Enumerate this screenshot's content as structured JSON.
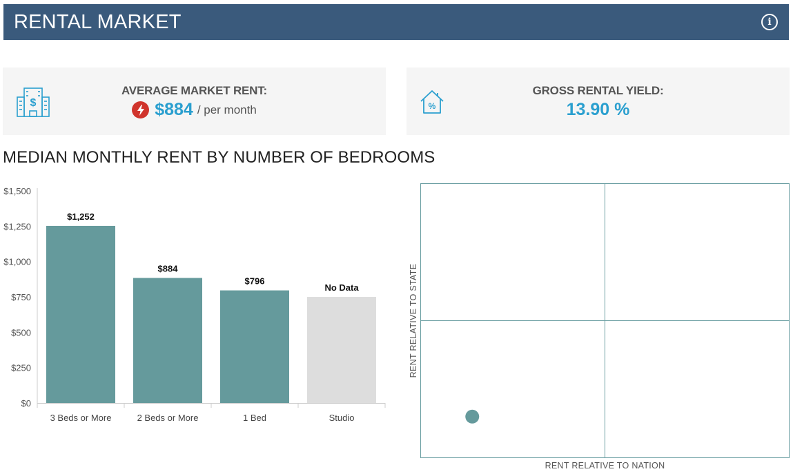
{
  "header": {
    "title": "RENTAL MARKET",
    "info_icon": "info-circle-icon"
  },
  "rent_card": {
    "icon": "building-dollar-icon",
    "label": "AVERAGE MARKET RENT:",
    "alert_icon": "lightning-bolt-icon",
    "value": "$884",
    "unit": "/ per month"
  },
  "yield_card": {
    "icon": "house-percent-icon",
    "label": "GROSS RENTAL YIELD:",
    "value": "13.90 %"
  },
  "section": {
    "title": "MEDIAN MONTHLY RENT BY NUMBER OF BEDROOMS"
  },
  "colors": {
    "header_bg": "#3a5a7c",
    "bar": "#659a9c",
    "bar_no_data": "#dddddd",
    "accent": "#2a9fcf",
    "alert": "#d0342c"
  },
  "chart_data": [
    {
      "type": "bar",
      "categories": [
        "3 Beds or More",
        "2 Beds or More",
        "1 Bed",
        "Studio"
      ],
      "values": [
        1252,
        884,
        796,
        null
      ],
      "data_labels": [
        "$1,252",
        "$884",
        "$796",
        "No Data"
      ],
      "placeholder_value_no_data": 750,
      "yticks": [
        0,
        250,
        500,
        750,
        1000,
        1250,
        1500
      ],
      "ytick_labels": [
        "$0",
        "$250",
        "$500",
        "$750",
        "$1,000",
        "$1,250",
        "$1,500"
      ],
      "ylim": [
        0,
        1500
      ],
      "title": "",
      "xlabel": "",
      "ylabel": "",
      "grid": false
    },
    {
      "type": "scatter",
      "xlabel": "RENT RELATIVE TO NATION",
      "ylabel": "RENT RELATIVE TO STATE",
      "quadrant_dividers": true,
      "xlim": [
        0,
        1
      ],
      "ylim": [
        0,
        1
      ],
      "points": [
        {
          "x": 0.14,
          "y": 0.15
        }
      ]
    }
  ]
}
